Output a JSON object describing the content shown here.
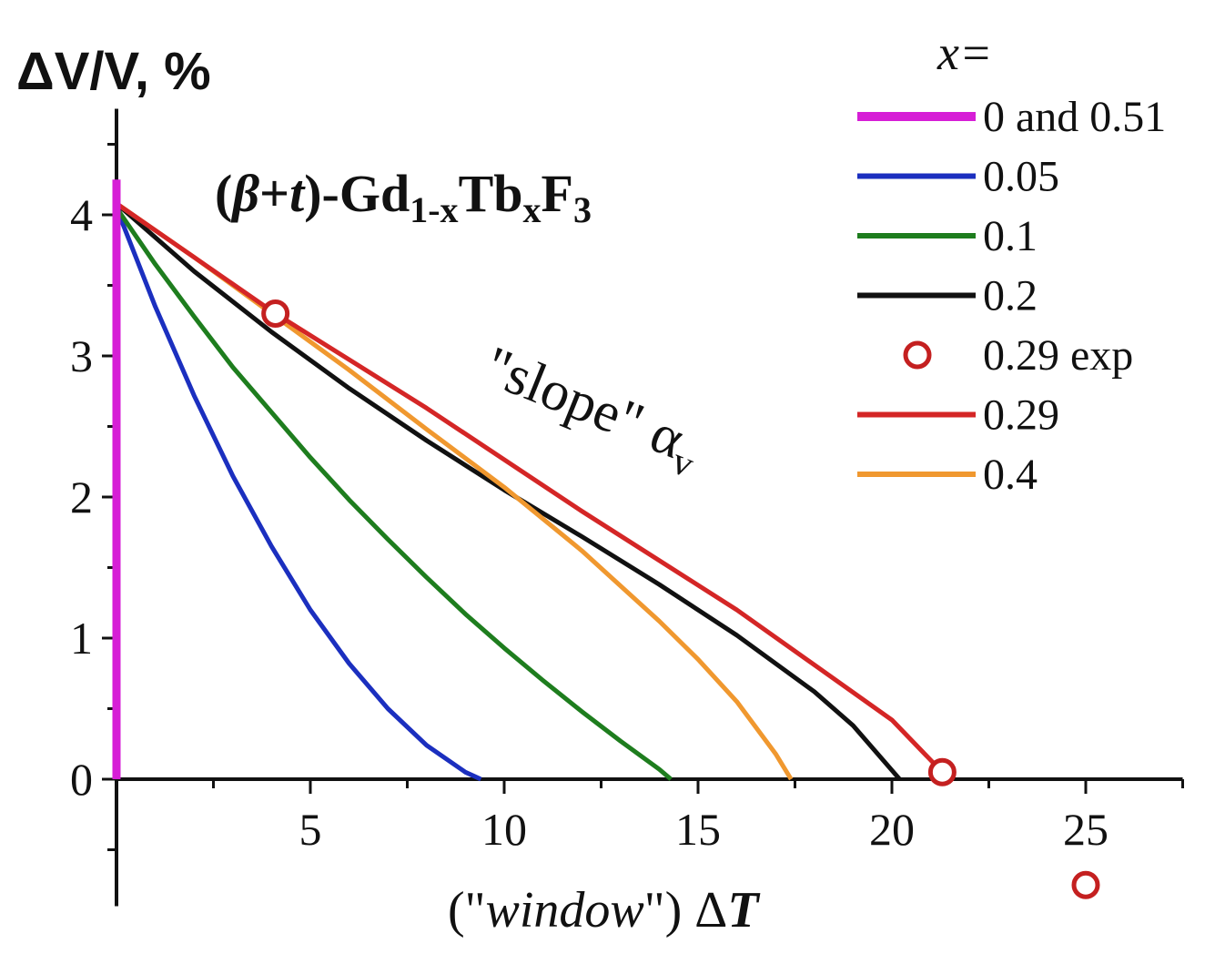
{
  "chart_data": {
    "type": "line",
    "title": "(β+t)-Gd1-xTbxF3",
    "title_parts": {
      "open": "(",
      "beta": "β",
      "plus": "+",
      "t": "t",
      "close": ")-Gd",
      "sub1": "1-x",
      "tb": "Tb",
      "sub2": "x",
      "f": "F",
      "sub3": "3"
    },
    "ylabel": "ΔV/V, %",
    "xlabel_parts": {
      "open": "(\"",
      "word": "window",
      "close": "\") Δ",
      "symbol": "T"
    },
    "annotation": {
      "text": "\"slope\" α",
      "sub": "v"
    },
    "legend_title": "x=",
    "legend_placement": "top-right",
    "xlim": [
      0,
      27.5
    ],
    "ylim": [
      -0.9,
      4.7
    ],
    "x_ticks": [
      5,
      10,
      15,
      20,
      25
    ],
    "x_tick_labels": [
      "5",
      "10",
      "15",
      "20",
      "25"
    ],
    "y_ticks": [
      0,
      1,
      2,
      3,
      4
    ],
    "y_tick_labels": [
      "0",
      "1",
      "2",
      "3",
      "4"
    ],
    "grid": false,
    "series": [
      {
        "name": "0 and 0.51",
        "color": "#d61ed6",
        "kind": "line",
        "width": 9,
        "points": [
          [
            0,
            0
          ],
          [
            0,
            4.25
          ]
        ]
      },
      {
        "name": "0.05",
        "color": "#1b2fbf",
        "kind": "line",
        "width": 5,
        "points": [
          [
            0,
            4.05
          ],
          [
            0.5,
            3.7
          ],
          [
            1,
            3.35
          ],
          [
            2,
            2.72
          ],
          [
            3,
            2.15
          ],
          [
            4,
            1.65
          ],
          [
            5,
            1.2
          ],
          [
            6,
            0.82
          ],
          [
            7,
            0.5
          ],
          [
            8,
            0.24
          ],
          [
            9,
            0.05
          ],
          [
            9.4,
            0
          ]
        ]
      },
      {
        "name": "0.1",
        "color": "#1e7d1e",
        "kind": "line",
        "width": 5,
        "points": [
          [
            0,
            4.05
          ],
          [
            1,
            3.65
          ],
          [
            2,
            3.28
          ],
          [
            3,
            2.92
          ],
          [
            4,
            2.6
          ],
          [
            5,
            2.28
          ],
          [
            6,
            1.98
          ],
          [
            7,
            1.7
          ],
          [
            8,
            1.43
          ],
          [
            9,
            1.17
          ],
          [
            10,
            0.93
          ],
          [
            11,
            0.7
          ],
          [
            12,
            0.48
          ],
          [
            13,
            0.27
          ],
          [
            14,
            0.07
          ],
          [
            14.3,
            0
          ]
        ]
      },
      {
        "name": "0.2",
        "color": "#111111",
        "kind": "line",
        "width": 5,
        "points": [
          [
            0,
            4.08
          ],
          [
            2,
            3.6
          ],
          [
            4,
            3.17
          ],
          [
            6,
            2.77
          ],
          [
            8,
            2.4
          ],
          [
            10,
            2.05
          ],
          [
            12,
            1.72
          ],
          [
            14,
            1.38
          ],
          [
            16,
            1.02
          ],
          [
            18,
            0.62
          ],
          [
            19,
            0.38
          ],
          [
            20.2,
            0
          ]
        ]
      },
      {
        "name": "0.29 exp",
        "color": "#c42020",
        "kind": "marker",
        "points": [
          [
            4.1,
            3.3
          ],
          [
            21.3,
            0.05
          ],
          [
            25,
            -0.75
          ]
        ]
      },
      {
        "name": "0.29",
        "color": "#d42626",
        "kind": "line",
        "width": 5,
        "points": [
          [
            0,
            4.08
          ],
          [
            4.1,
            3.3
          ],
          [
            8,
            2.63
          ],
          [
            12,
            1.9
          ],
          [
            16,
            1.2
          ],
          [
            20,
            0.42
          ],
          [
            21.3,
            0.05
          ]
        ]
      },
      {
        "name": "0.4",
        "color": "#f0982f",
        "kind": "line",
        "width": 5,
        "points": [
          [
            0,
            4.08
          ],
          [
            2,
            3.7
          ],
          [
            4,
            3.3
          ],
          [
            6,
            2.9
          ],
          [
            8,
            2.48
          ],
          [
            10,
            2.07
          ],
          [
            12,
            1.62
          ],
          [
            14,
            1.12
          ],
          [
            15,
            0.85
          ],
          [
            16,
            0.55
          ],
          [
            17,
            0.18
          ],
          [
            17.4,
            0
          ]
        ]
      }
    ]
  }
}
